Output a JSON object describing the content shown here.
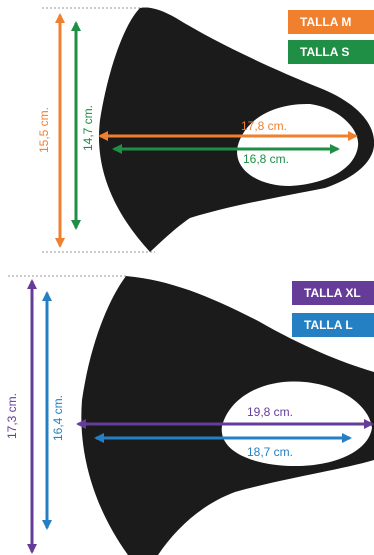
{
  "legends": {
    "top": [
      {
        "label": "TALLA M",
        "color": "#F07F2E"
      },
      {
        "label": "TALLA S",
        "color": "#1E8F44"
      }
    ],
    "bottom": [
      {
        "label": "TALLA XL",
        "color": "#663C99"
      },
      {
        "label": "TALLA L",
        "color": "#2480C2"
      }
    ]
  },
  "measurements": {
    "top": {
      "height_m": "15,5 cm.",
      "height_s": "14,7 cm.",
      "width_m": "17,8 cm.",
      "width_s": "16,8 cm."
    },
    "bottom": {
      "height_xl": "17,3 cm.",
      "height_l": "16,4 cm.",
      "width_xl": "19,8 cm.",
      "width_l": "18,7 cm."
    }
  },
  "colors": {
    "mask": "#1b1b1b",
    "guide": "#9a9a9a"
  }
}
